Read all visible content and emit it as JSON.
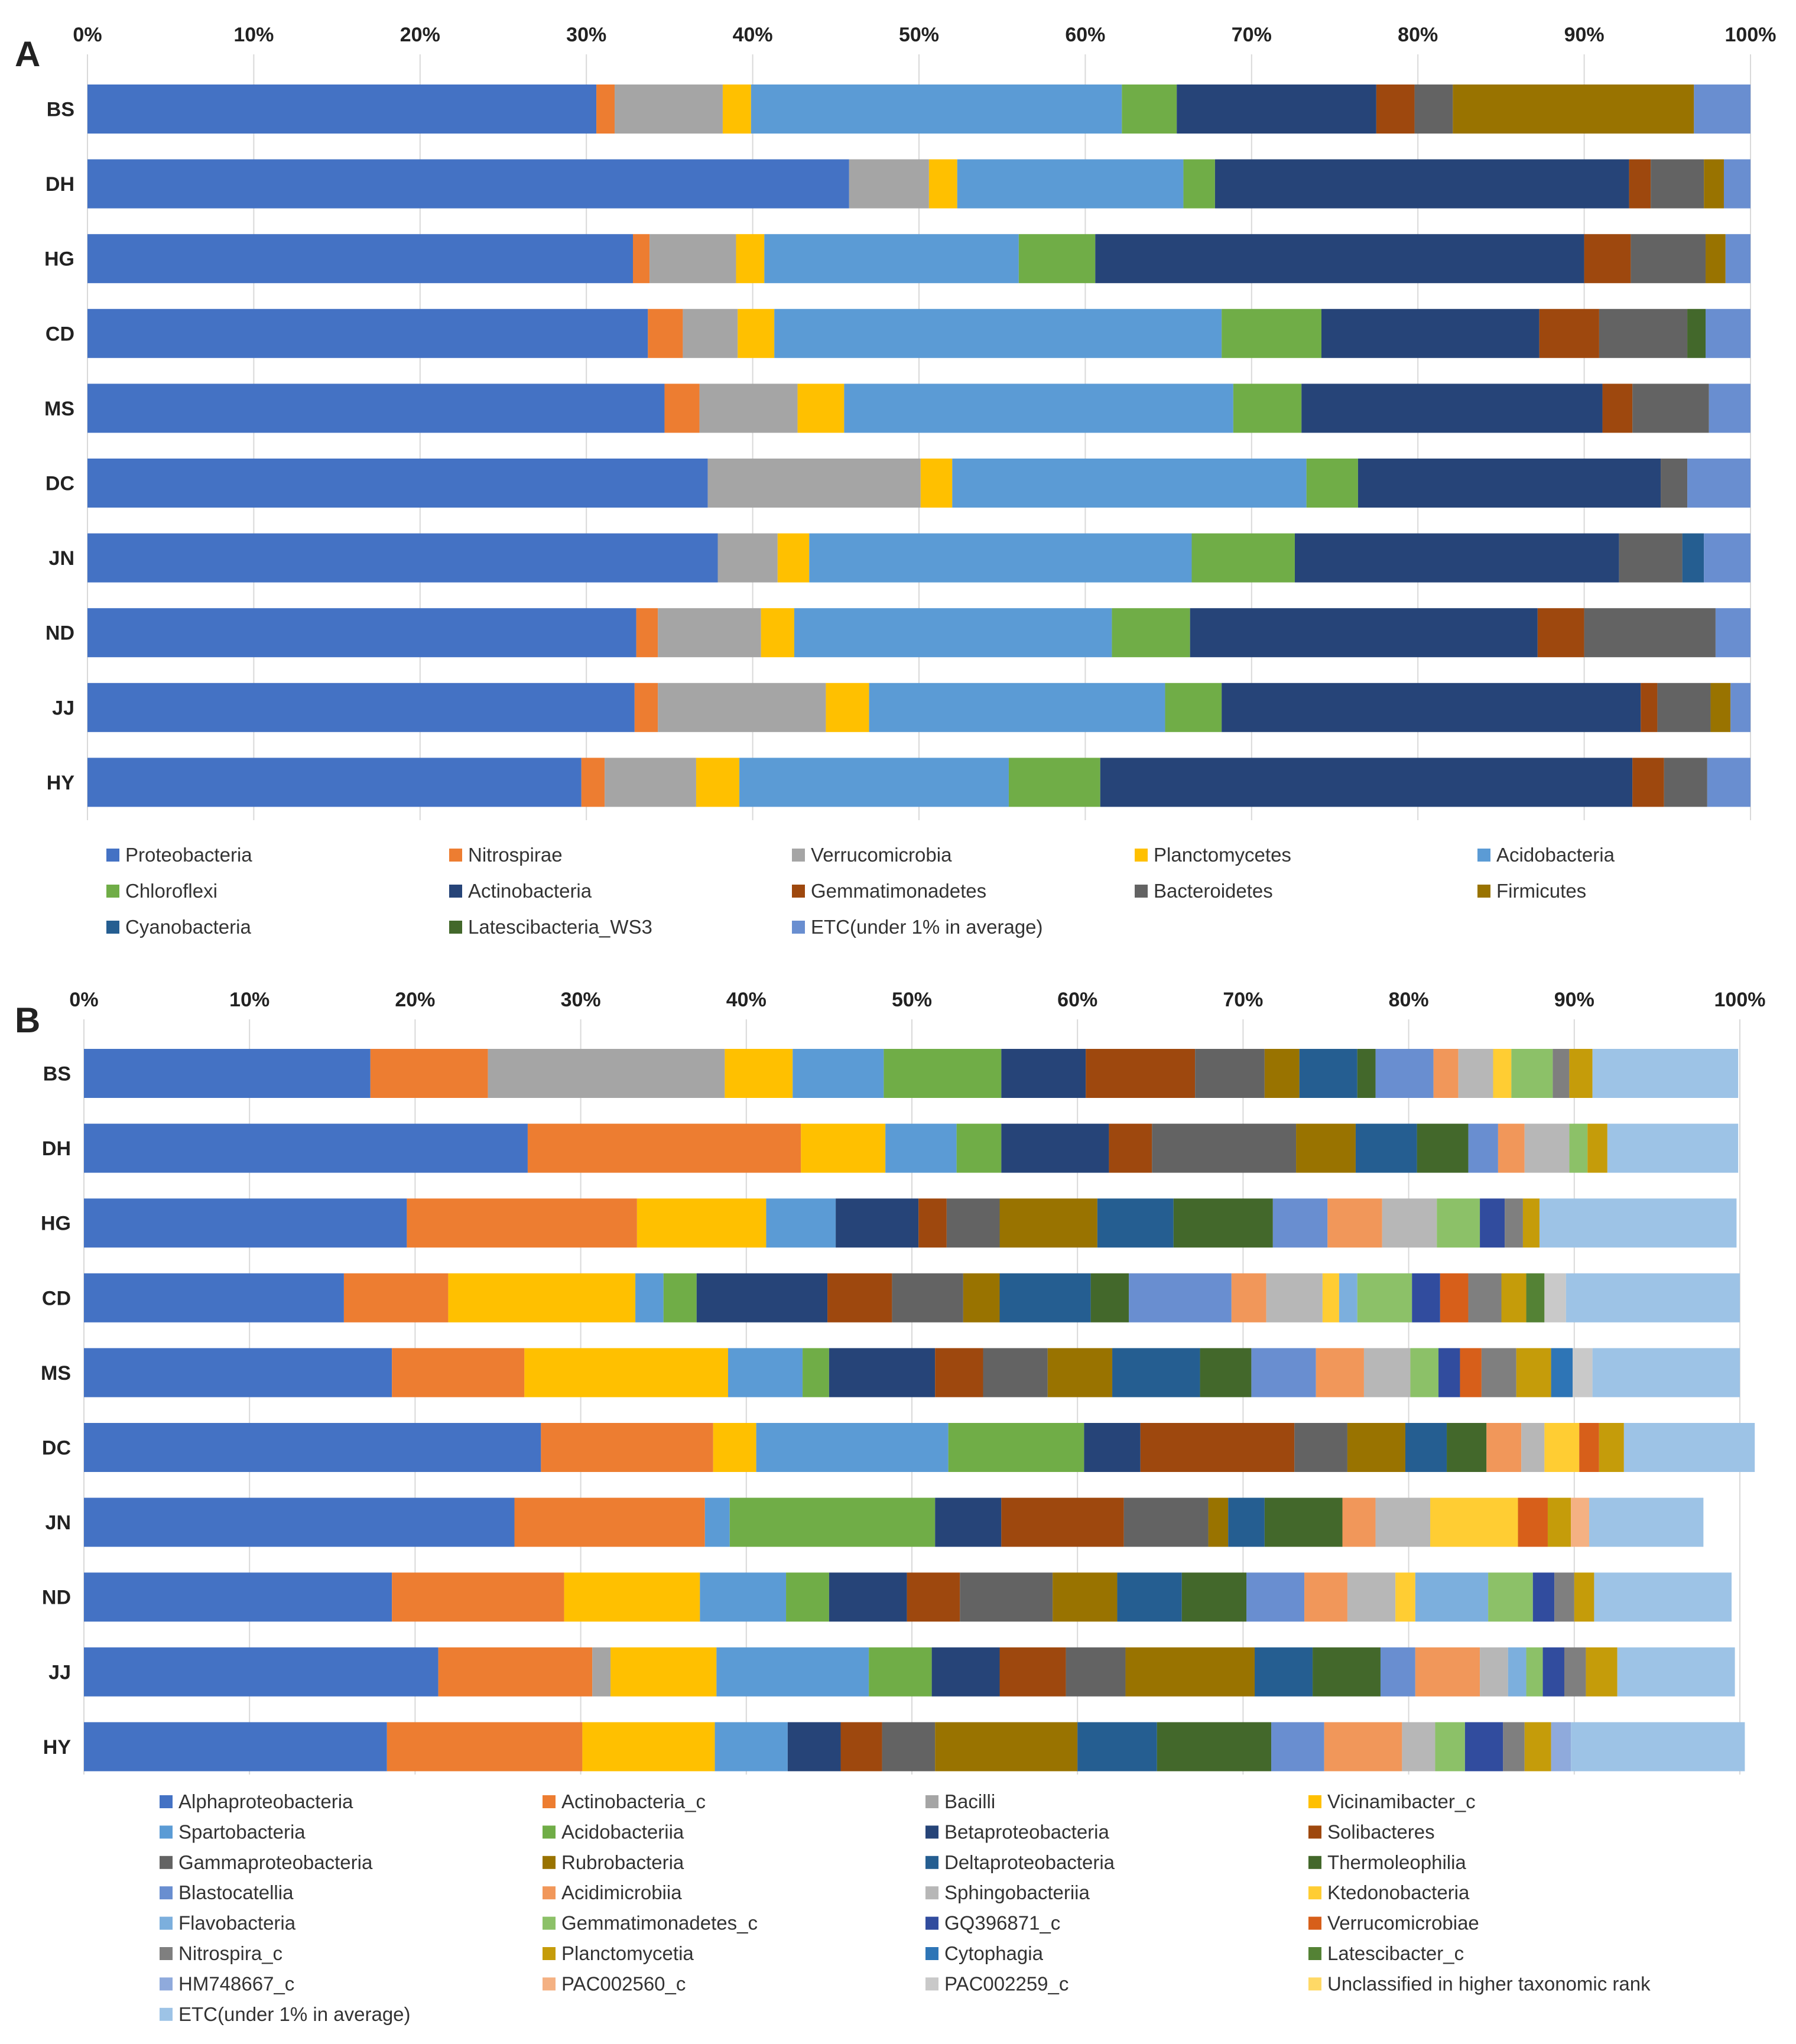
{
  "chart_data": [
    {
      "type": "bar",
      "stacked": true,
      "orientation": "horizontal",
      "percent": true,
      "panel": "A",
      "categories": [
        "BS",
        "DH",
        "HG",
        "CD",
        "MS",
        "DC",
        "JN",
        "ND",
        "JJ",
        "HY"
      ],
      "ticks": [
        "0%",
        "10%",
        "20%",
        "30%",
        "40%",
        "50%",
        "60%",
        "70%",
        "80%",
        "90%",
        "100%"
      ],
      "xlim": [
        0,
        100
      ],
      "series": [
        {
          "name": "Proteobacteria",
          "color": "#4472C4",
          "values": [
            30.6,
            45.8,
            32.8,
            33.7,
            34.7,
            37.3,
            37.9,
            33.0,
            32.9,
            29.7
          ]
        },
        {
          "name": "Nitrospirae",
          "color": "#ED7D31",
          "values": [
            1.1,
            0,
            1.0,
            2.1,
            2.1,
            0,
            0,
            1.3,
            1.4,
            1.4
          ]
        },
        {
          "name": "Verrucomicrobia",
          "color": "#A5A5A5",
          "values": [
            6.5,
            4.8,
            5.2,
            3.3,
            5.9,
            12.8,
            3.6,
            6.2,
            10.1,
            5.5
          ]
        },
        {
          "name": "Planctomycetes",
          "color": "#FFC000",
          "values": [
            1.7,
            1.7,
            1.7,
            2.2,
            2.8,
            1.9,
            1.9,
            2.0,
            2.6,
            2.6
          ]
        },
        {
          "name": "Acidobacteria",
          "color": "#5B9BD5",
          "values": [
            22.3,
            13.6,
            15.3,
            26.9,
            23.4,
            21.3,
            23.0,
            19.1,
            17.8,
            16.2
          ]
        },
        {
          "name": "Chloroflexi",
          "color": "#70AD47",
          "values": [
            3.3,
            1.9,
            4.6,
            6.0,
            4.1,
            3.1,
            6.2,
            4.7,
            3.4,
            5.5
          ]
        },
        {
          "name": "Actinobacteria",
          "color": "#264478",
          "values": [
            12.0,
            24.9,
            29.4,
            13.1,
            18.1,
            18.2,
            19.5,
            20.9,
            25.2,
            32.0
          ]
        },
        {
          "name": "Gemmatimonadetes",
          "color": "#9E480E",
          "values": [
            2.3,
            1.3,
            2.8,
            3.6,
            1.8,
            0,
            0,
            2.8,
            1.0,
            1.9
          ]
        },
        {
          "name": "Bacteroidetes",
          "color": "#636363",
          "values": [
            2.3,
            3.2,
            4.5,
            5.3,
            4.6,
            1.6,
            3.8,
            7.9,
            3.2,
            2.6
          ]
        },
        {
          "name": "Firmicutes",
          "color": "#997300",
          "values": [
            14.5,
            1.2,
            1.2,
            0,
            0,
            0,
            0,
            0,
            1.2,
            0
          ]
        },
        {
          "name": "Cyanobacteria",
          "color": "#255E91",
          "values": [
            0,
            0,
            0,
            0,
            0,
            0,
            1.3,
            0,
            0,
            0
          ]
        },
        {
          "name": "Latescibacteria_WS3",
          "color": "#43682B",
          "values": [
            0,
            0,
            0,
            1.1,
            0,
            0,
            0,
            0,
            0,
            0
          ]
        },
        {
          "name": "ETC(under 1% in average)",
          "color": "#698ED0",
          "values": [
            3.4,
            1.6,
            1.5,
            2.7,
            2.5,
            3.8,
            2.8,
            2.1,
            1.2,
            2.6
          ]
        }
      ]
    },
    {
      "type": "bar",
      "stacked": true,
      "orientation": "horizontal",
      "percent": true,
      "panel": "B",
      "categories": [
        "BS",
        "DH",
        "HG",
        "CD",
        "MS",
        "DC",
        "JN",
        "ND",
        "JJ",
        "HY"
      ],
      "ticks": [
        "0%",
        "10%",
        "20%",
        "30%",
        "40%",
        "50%",
        "60%",
        "70%",
        "80%",
        "90%",
        "100%"
      ],
      "xlim": [
        0,
        100
      ],
      "series": [
        {
          "name": "Alphaproteobacteria",
          "color": "#4472C4",
          "values": [
            17.3,
            26.8,
            19.5,
            15.7,
            18.6,
            27.6,
            26.0,
            18.6,
            21.4,
            18.3
          ]
        },
        {
          "name": "Actinobacteria_c",
          "color": "#ED7D31",
          "values": [
            7.1,
            16.5,
            13.9,
            6.3,
            8.0,
            10.4,
            11.5,
            10.4,
            9.3,
            11.8
          ]
        },
        {
          "name": "Bacilli",
          "color": "#A5A5A5",
          "values": [
            14.3,
            0,
            0,
            0,
            0,
            0,
            0,
            0,
            1.1,
            0
          ]
        },
        {
          "name": "Vicinamibacter_c",
          "color": "#FFC000",
          "values": [
            4.1,
            5.1,
            7.8,
            11.3,
            12.3,
            2.6,
            0,
            8.2,
            6.4,
            8.0
          ]
        },
        {
          "name": "Spartobacteria",
          "color": "#5B9BD5",
          "values": [
            5.5,
            4.3,
            4.2,
            1.7,
            4.5,
            11.6,
            1.5,
            5.2,
            9.2,
            4.4
          ]
        },
        {
          "name": "Acidobacteriia",
          "color": "#70AD47",
          "values": [
            7.1,
            2.7,
            0,
            2.0,
            1.6,
            8.2,
            12.4,
            2.6,
            3.8,
            0
          ]
        },
        {
          "name": "Betaproteobacteria",
          "color": "#264478",
          "values": [
            5.1,
            6.5,
            5.0,
            7.9,
            6.4,
            3.4,
            4.0,
            4.7,
            4.1,
            3.2
          ]
        },
        {
          "name": "Solibacteres",
          "color": "#9E480E",
          "values": [
            6.6,
            2.6,
            1.7,
            3.9,
            2.9,
            9.3,
            7.4,
            3.2,
            4.0,
            2.5
          ]
        },
        {
          "name": "Gammaproteobacteria",
          "color": "#636363",
          "values": [
            4.2,
            8.7,
            3.2,
            4.3,
            3.9,
            3.2,
            5.1,
            5.6,
            3.6,
            3.2
          ]
        },
        {
          "name": "Rubrobacteria",
          "color": "#997300",
          "values": [
            2.1,
            3.6,
            5.9,
            2.2,
            3.9,
            3.5,
            1.2,
            3.9,
            7.8,
            8.6
          ]
        },
        {
          "name": "Deltaproteobacteria",
          "color": "#255E91",
          "values": [
            3.5,
            3.7,
            4.6,
            5.5,
            5.3,
            2.5,
            2.2,
            3.9,
            3.5,
            4.8
          ]
        },
        {
          "name": "Thermoleophilia",
          "color": "#43682B",
          "values": [
            1.1,
            3.1,
            6.0,
            2.3,
            3.1,
            2.4,
            4.7,
            3.9,
            4.1,
            6.9
          ]
        },
        {
          "name": "Blastocatellia",
          "color": "#698ED0",
          "values": [
            3.5,
            1.8,
            3.3,
            6.2,
            3.9,
            0,
            0,
            3.5,
            2.1,
            3.2
          ]
        },
        {
          "name": "Acidimicrobiia",
          "color": "#F1975A",
          "values": [
            1.5,
            1.6,
            3.3,
            2.1,
            2.9,
            2.1,
            2.0,
            2.6,
            3.9,
            4.7
          ]
        },
        {
          "name": "Sphingobacteriia",
          "color": "#B7B7B7",
          "values": [
            2.1,
            2.7,
            3.3,
            3.4,
            2.8,
            1.4,
            3.3,
            2.9,
            1.7,
            2.0
          ]
        },
        {
          "name": "Ktedonobacteria",
          "color": "#FFCD33",
          "values": [
            1.1,
            0,
            0,
            1.0,
            0,
            2.1,
            5.3,
            1.2,
            0,
            0
          ]
        },
        {
          "name": "Flavobacteria",
          "color": "#7CAFDD",
          "values": [
            0,
            0,
            0,
            1.1,
            0,
            0,
            0,
            4.4,
            1.1,
            0
          ]
        },
        {
          "name": "Gemmatimonadetes_c",
          "color": "#8CC168",
          "values": [
            2.5,
            1.1,
            2.6,
            3.3,
            1.7,
            0,
            0,
            2.7,
            1.0,
            1.8
          ]
        },
        {
          "name": "GQ396871_c",
          "color": "#314C9E",
          "values": [
            0,
            0,
            1.5,
            1.7,
            1.3,
            0,
            0,
            1.3,
            1.3,
            2.3
          ]
        },
        {
          "name": "Verrucomicrobiae",
          "color": "#D75F1A",
          "values": [
            0,
            0,
            0,
            1.7,
            1.3,
            1.2,
            1.8,
            0,
            0,
            0
          ]
        },
        {
          "name": "Nitrospira_c",
          "color": "#7F7F7F",
          "values": [
            1.0,
            0,
            1.1,
            2.0,
            2.1,
            0,
            0,
            1.2,
            1.3,
            1.3
          ]
        },
        {
          "name": "Planctomycetia",
          "color": "#C59C0A",
          "values": [
            1.4,
            1.2,
            1.0,
            1.5,
            2.1,
            1.5,
            1.4,
            1.2,
            1.9,
            1.6
          ]
        },
        {
          "name": "Cytophagia",
          "color": "#2E75B6",
          "values": [
            0,
            0,
            0,
            0,
            1.3,
            0,
            0,
            0,
            0,
            0
          ]
        },
        {
          "name": "Latescibacter_c",
          "color": "#548235",
          "values": [
            0,
            0,
            0,
            1.1,
            0,
            0,
            0,
            0,
            0,
            0
          ]
        },
        {
          "name": "HM748667_c",
          "color": "#8FAADC",
          "values": [
            0,
            0,
            0,
            0,
            0,
            0,
            0,
            0,
            0,
            1.2
          ]
        },
        {
          "name": "PAC002560_c",
          "color": "#F4B183",
          "values": [
            0,
            0,
            0,
            0,
            0,
            0,
            1.1,
            0,
            0,
            0
          ]
        },
        {
          "name": "PAC002259_c",
          "color": "#C9C9C9",
          "values": [
            0,
            0,
            0,
            1.3,
            1.2,
            0,
            0,
            0,
            0,
            0
          ]
        },
        {
          "name": "Unclassified in higher taxonomic rank",
          "color": "#FFD966",
          "values": [
            0,
            0,
            0,
            0,
            0,
            0,
            0,
            0,
            0,
            0
          ]
        },
        {
          "name": "ETC(under 1% in average)",
          "color": "#9DC3E6",
          "values": [
            8.8,
            7.9,
            11.9,
            10.5,
            8.9,
            7.9,
            6.9,
            8.3,
            7.1,
            10.5
          ]
        }
      ]
    }
  ]
}
